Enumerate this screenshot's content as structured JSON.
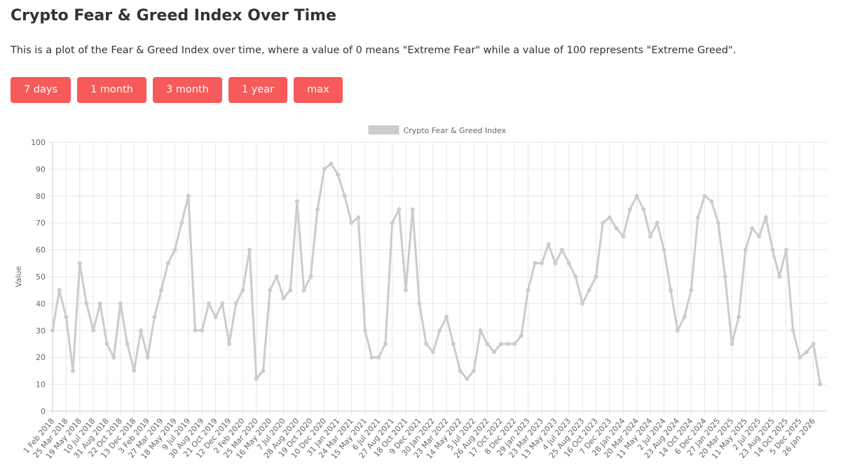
{
  "header": {
    "title": "Crypto Fear & Greed Index Over Time",
    "description": "This is a plot of the Fear & Greed Index over time, where a value of 0 means \"Extreme Fear\" while a value of 100 represents \"Extreme Greed\"."
  },
  "buttons": [
    "7 days",
    "1 month",
    "3 month",
    "1 year",
    "max"
  ],
  "chart_data": {
    "type": "line",
    "y_label": "Value",
    "legend": "top",
    "grid": true,
    "categories": [
      "1 Feb 2018",
      null,
      "25 Mar 2018",
      null,
      "19 May 2018",
      null,
      "10 Jul 2018",
      null,
      "31 Aug 2018",
      null,
      "22 Oct 2018",
      null,
      "13 Dec 2018",
      null,
      "3 Feb 2019",
      null,
      "27 Mar 2019",
      null,
      "18 May 2019",
      null,
      "9 Jul 2019",
      null,
      "30 Aug 2019",
      null,
      "21 Oct 2019",
      null,
      "12 Dec 2019",
      null,
      "2 Feb 2020",
      null,
      "25 Mar 2020",
      null,
      "16 May 2020",
      null,
      "7 Jul 2020",
      null,
      "28 Aug 2020",
      null,
      "19 Oct 2020",
      null,
      "10 Dec 2020",
      null,
      "31 Jan 2021",
      null,
      "24 Mar 2021",
      null,
      "15 May 2021",
      null,
      "6 Jul 2021",
      null,
      "27 Aug 2021",
      null,
      "18 Oct 2021",
      null,
      "9 Dec 2021",
      null,
      "30 Jan 2022",
      null,
      "23 Mar 2022",
      null,
      "14 May 2022",
      null,
      "5 Jul 2022",
      null,
      "26 Aug 2022",
      null,
      "17 Oct 2022",
      null,
      "8 Dec 2022",
      null,
      "29 Jan 2023",
      null,
      "23 Mar 2023",
      null,
      "13 May 2023",
      null,
      "4 Jul 2023",
      null,
      "25 Aug 2023",
      null,
      "16 Oct 2023",
      null,
      "7 Dec 2023",
      null,
      "28 Jan 2024",
      null,
      "20 Mar 2024",
      null,
      "11 May 2024",
      null,
      "2 Jul 2024",
      null,
      "23 Aug 2024",
      null,
      "14 Oct 2024",
      null,
      "6 Dec 2024",
      null,
      "27 Jan 2025",
      null,
      "20 Mar 2025",
      null,
      "11 May 2025",
      null,
      "2 Jul 2025",
      null,
      "23 Aug 2025",
      null,
      "14 Oct 2025",
      null,
      "5 Dec 2025",
      null,
      "26 Jan 2026",
      null
    ],
    "series": [
      {
        "name": "Crypto Fear & Greed Index",
        "color": "#cccccc",
        "values": [
          30,
          45,
          35,
          15,
          55,
          40,
          30,
          40,
          25,
          20,
          40,
          25,
          15,
          30,
          20,
          35,
          45,
          55,
          60,
          70,
          80,
          30,
          30,
          40,
          35,
          40,
          25,
          40,
          45,
          60,
          12,
          15,
          45,
          50,
          42,
          45,
          78,
          45,
          50,
          75,
          90,
          92,
          88,
          80,
          70,
          72,
          30,
          20,
          20,
          25,
          70,
          75,
          45,
          75,
          40,
          25,
          22,
          30,
          35,
          25,
          15,
          12,
          15,
          30,
          25,
          22,
          25,
          25,
          25,
          28,
          45,
          55,
          55,
          62,
          55,
          60,
          55,
          50,
          40,
          45,
          50,
          70,
          72,
          68,
          65,
          75,
          80,
          75,
          65,
          70,
          60,
          45,
          30,
          35,
          45,
          72,
          80,
          78,
          70,
          50,
          25,
          35,
          60,
          68,
          65,
          72,
          60,
          50,
          60,
          30,
          20,
          22,
          25,
          10
        ]
      }
    ],
    "ylim": [
      0,
      100
    ],
    "yticks": [
      0,
      10,
      20,
      30,
      40,
      50,
      60,
      70,
      80,
      90,
      100
    ]
  }
}
